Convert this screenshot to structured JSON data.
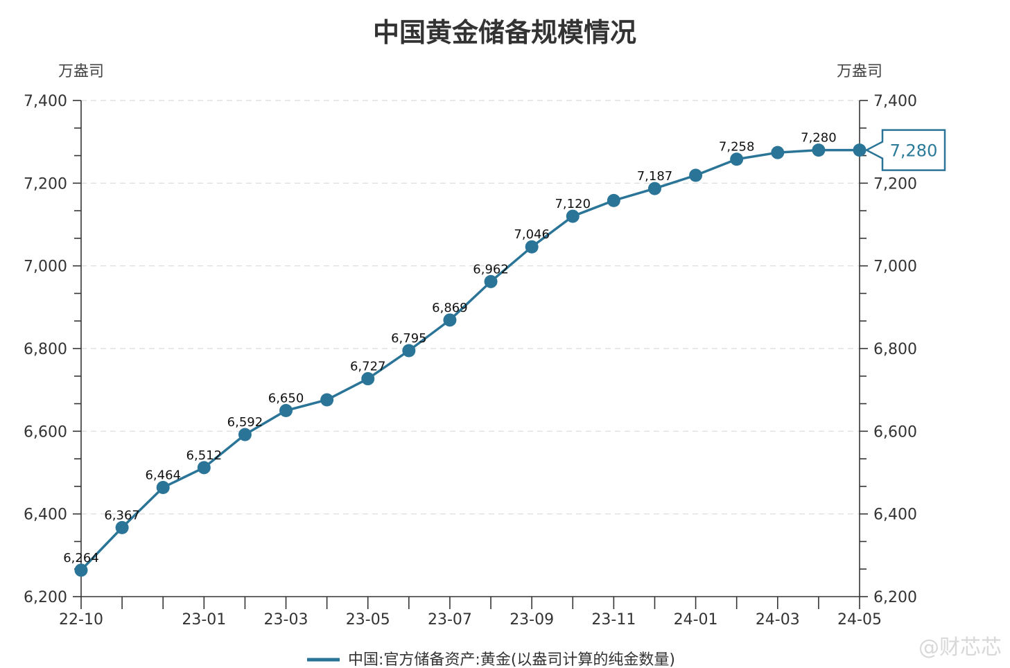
{
  "colors": {
    "series": "#2a7597",
    "callout_text": "#2a7a9a",
    "grid": "#d9d9d9",
    "axis": "#333333"
  },
  "watermark": "@财芯芯",
  "chart_data": {
    "type": "line",
    "title": "中国黄金储备规模情况",
    "ylabel_left": "万盎司",
    "ylabel_right": "万盎司",
    "xlabel": "",
    "ylim": [
      6200,
      7400
    ],
    "y_ticks": [
      "6,200",
      "6,400",
      "6,600",
      "6,800",
      "7,000",
      "7,200",
      "7,400"
    ],
    "x_tick_labels": [
      "22-10",
      "23-01",
      "23-03",
      "23-05",
      "23-07",
      "23-09",
      "23-11",
      "24-01",
      "24-03",
      "24-05"
    ],
    "grid": true,
    "legend_position": "bottom",
    "categories": [
      "22-10",
      "22-11",
      "22-12",
      "23-01",
      "23-02",
      "23-03",
      "23-04",
      "23-05",
      "23-06",
      "23-07",
      "23-08",
      "23-09",
      "23-10",
      "23-11",
      "23-12",
      "24-01",
      "24-02",
      "24-03",
      "24-04",
      "24-05"
    ],
    "series": [
      {
        "name": "中国:官方储备资产:黄金(以盎司计算的纯金数量)",
        "values": [
          6264,
          6367,
          6464,
          6512,
          6592,
          6650,
          6676,
          6727,
          6795,
          6869,
          6962,
          7046,
          7120,
          7158,
          7187,
          7219,
          7258,
          7274,
          7280,
          7280
        ]
      }
    ],
    "data_labels": [
      "6,264",
      "6,367",
      "6,464",
      "6,512",
      "6,592",
      "6,650",
      "",
      "6,727",
      "6,795",
      "6,869",
      "6,962",
      "7,046",
      "7,120",
      "",
      "7,187",
      "",
      "7,258",
      "",
      "7,280",
      ""
    ],
    "callout": {
      "label": "7,280"
    }
  }
}
